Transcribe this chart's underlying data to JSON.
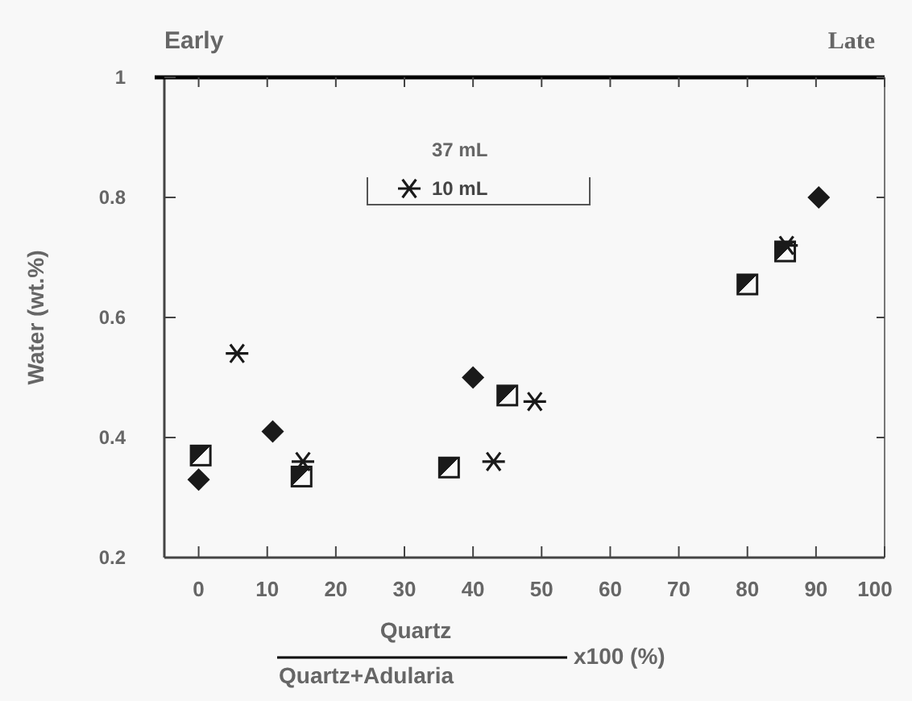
{
  "chart_data": {
    "type": "scatter",
    "xlabel": "Quartz",
    "ylabel": "Water (wt.%)",
    "xlim": [
      -5,
      100
    ],
    "xticks": [
      0,
      10,
      20,
      30,
      40,
      50,
      60,
      70,
      80,
      90,
      100
    ],
    "ylim": [
      0.2,
      1
    ],
    "yticks": [
      0.2,
      0.4,
      0.6,
      0.8,
      1
    ],
    "grid": false,
    "legend": "top",
    "annotations": [
      "Early",
      "Late",
      "Quartz+Adularia",
      "x100 (%)",
      "37 mL"
    ],
    "series": [
      {
        "marker": "diamond",
        "color": "#1a1a1a",
        "x": [
          0,
          10.8,
          40,
          90.4
        ],
        "values": [
          0.33,
          0.41,
          0.5,
          0.8
        ]
      },
      {
        "marker": "square",
        "color": "#1a1a1a",
        "x": [
          0.3,
          15,
          36.5,
          45,
          80,
          85.5
        ],
        "values": [
          0.37,
          0.335,
          0.35,
          0.47,
          0.655,
          0.71
        ]
      },
      {
        "name": "10 mL",
        "marker": "cross",
        "color": "#1a1a1a",
        "x": [
          5.6,
          15.2,
          43,
          49,
          85.7
        ],
        "values": [
          0.54,
          0.36,
          0.36,
          0.46,
          0.72
        ]
      }
    ]
  }
}
